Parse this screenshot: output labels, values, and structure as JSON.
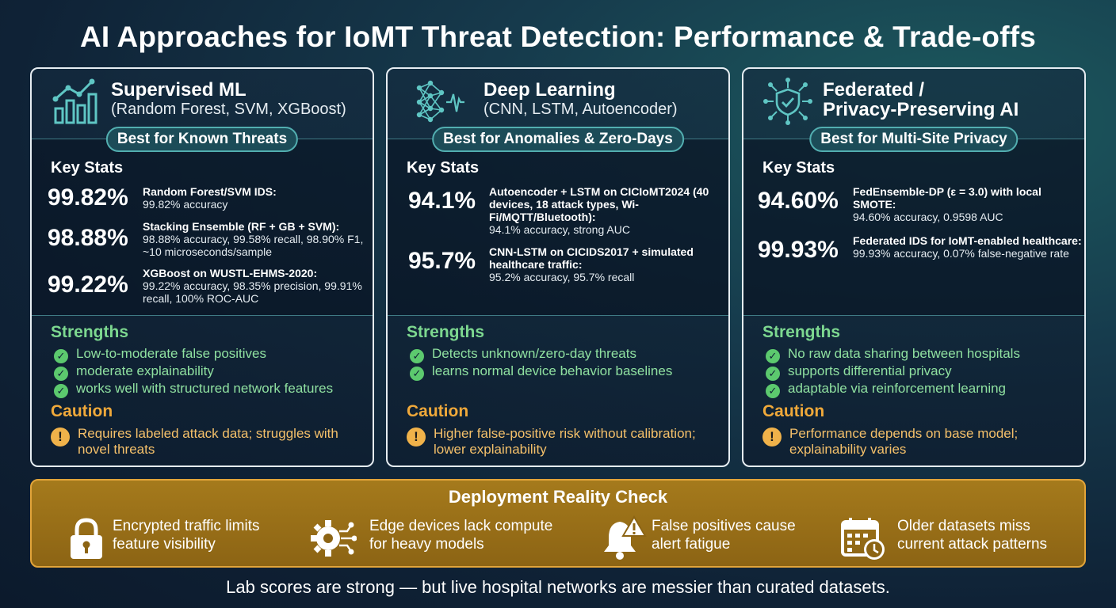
{
  "title": "AI Approaches for IoMT Threat Detection: Performance & Trade-offs",
  "cards": [
    {
      "icon": "bar-chart-icon",
      "title": "Supervised ML",
      "subtitle": "(Random Forest, SVM, XGBoost)",
      "pill": "Best for Known Threats",
      "stats_title": "Key Stats",
      "stats": [
        {
          "big": "99.82%",
          "head": "Random Forest/SVM IDS:",
          "body": "99.82% accuracy"
        },
        {
          "big": "98.88%",
          "head": "Stacking Ensemble (RF + GB + SVM):",
          "body": "98.88% accuracy, 99.58% recall, 98.90% F1, ~10 microseconds/sample"
        },
        {
          "big": "99.22%",
          "head": "XGBoost on WUSTL-EHMS-2020:",
          "body": "99.22% accuracy, 98.35% precision, 99.91% recall, 100% ROC-AUC"
        }
      ],
      "strengths_title": "Strengths",
      "strengths": [
        "Low-to-moderate false positives",
        "moderate explainability",
        "works well with structured network features"
      ],
      "caution_title": "Caution",
      "caution": "Requires labeled attack data; struggles with novel threats"
    },
    {
      "icon": "neural-network-icon",
      "title": "Deep Learning",
      "subtitle": "(CNN, LSTM, Autoencoder)",
      "pill": "Best for Anomalies & Zero-Days",
      "stats_title": "Key Stats",
      "stats": [
        {
          "big": "94.1%",
          "head": "Autoencoder + LSTM on CICIoMT2024 (40 devices, 18 attack types, Wi-Fi/MQTT/Bluetooth):",
          "body": "94.1% accuracy, strong AUC"
        },
        {
          "big": "95.7%",
          "head": "CNN-LSTM on CICIDS2017 + simulated healthcare traffic:",
          "body": "95.2% accuracy, 95.7% recall"
        }
      ],
      "strengths_title": "Strengths",
      "strengths": [
        "Detects unknown/zero-day threats",
        "learns normal device behavior baselines"
      ],
      "caution_title": "Caution",
      "caution": "Higher false-positive risk without calibration; lower explainability"
    },
    {
      "icon": "shield-network-icon",
      "title": "Federated /",
      "title2": "Privacy-Preserving AI",
      "pill": "Best for Multi-Site Privacy",
      "stats_title": "Key Stats",
      "stats": [
        {
          "big": "94.60%",
          "head": "FedEnsemble-DP (ε = 3.0) with local SMOTE:",
          "body": "94.60% accuracy, 0.9598 AUC"
        },
        {
          "big": "99.93%",
          "head": "Federated IDS for IoMT-enabled healthcare:",
          "body": "99.93% accuracy, 0.07% false-negative rate"
        }
      ],
      "strengths_title": "Strengths",
      "strengths": [
        "No raw data sharing between hospitals",
        "supports differential privacy",
        "adaptable via reinforcement learning"
      ],
      "caution_title": "Caution",
      "caution": "Performance depends on base model; explainability varies"
    }
  ],
  "reality": {
    "title": "Deployment Reality Check",
    "items": [
      {
        "icon": "lock-icon",
        "line1": "Encrypted traffic limits",
        "line2": "feature visibility"
      },
      {
        "icon": "gear-circuit-icon",
        "line1": "Edge devices lack compute",
        "line2": "for heavy models"
      },
      {
        "icon": "bell-warning-icon",
        "line1": "False positives cause",
        "line2": "alert fatigue"
      },
      {
        "icon": "calendar-clock-icon",
        "line1": "Older datasets miss",
        "line2": "current attack patterns"
      }
    ]
  },
  "footer": "Lab scores are strong — but live hospital networks are messier than curated datasets.",
  "colors": {
    "strength": "#7dd890",
    "caution": "#f0a93a",
    "reality_bg": "#9a6f18",
    "accent": "#52aeb0"
  }
}
